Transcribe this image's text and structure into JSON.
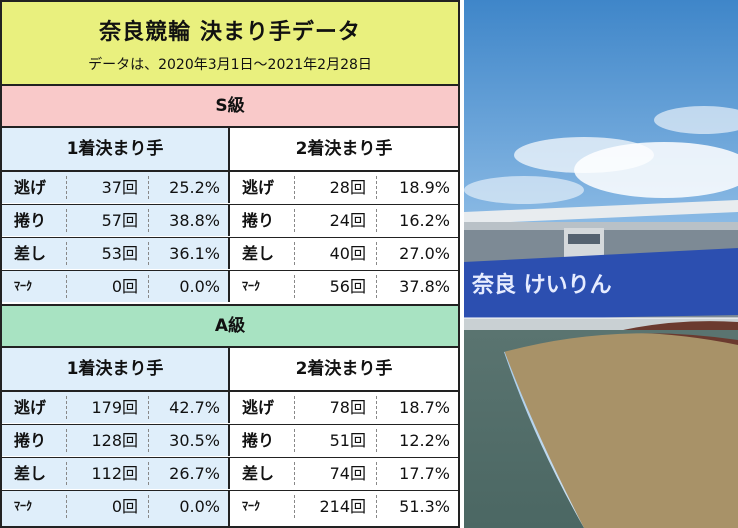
{
  "header": {
    "title": "奈良競輪 決まり手データ",
    "subtitle": "データは、2020年3月1日～2021年2月28日"
  },
  "sections": [
    {
      "band": "S級",
      "left_header": "1着決まり手",
      "right_header": "2着決まり手",
      "rows": [
        {
          "kind": "逃げ",
          "l_count": "37回",
          "l_pct": "25.2%",
          "r_count": "28回",
          "r_pct": "18.9%"
        },
        {
          "kind": "捲り",
          "l_count": "57回",
          "l_pct": "38.8%",
          "r_count": "24回",
          "r_pct": "16.2%"
        },
        {
          "kind": "差し",
          "l_count": "53回",
          "l_pct": "36.1%",
          "r_count": "40回",
          "r_pct": "27.0%"
        },
        {
          "kind": "ﾏｰｸ",
          "l_count": "0回",
          "l_pct": "0.0%",
          "r_count": "56回",
          "r_pct": "37.8%"
        }
      ]
    },
    {
      "band": "A級",
      "left_header": "1着決まり手",
      "right_header": "2着決まり手",
      "rows": [
        {
          "kind": "逃げ",
          "l_count": "179回",
          "l_pct": "42.7%",
          "r_count": "78回",
          "r_pct": "18.7%"
        },
        {
          "kind": "捲り",
          "l_count": "128回",
          "l_pct": "30.5%",
          "r_count": "51回",
          "r_pct": "12.2%"
        },
        {
          "kind": "差し",
          "l_count": "112回",
          "l_pct": "26.7%",
          "r_count": "74回",
          "r_pct": "17.7%"
        },
        {
          "kind": "ﾏｰｸ",
          "l_count": "0回",
          "l_pct": "0.0%",
          "r_count": "214回",
          "r_pct": "51.3%"
        }
      ]
    }
  ],
  "photo": {
    "stand_sign": "奈良 けいりん"
  },
  "colors": {
    "header_bg": "#e9f07e",
    "s_band": "#f9c9c9",
    "a_band": "#a8e3c2",
    "left_col_bg": "#dfeefa"
  }
}
